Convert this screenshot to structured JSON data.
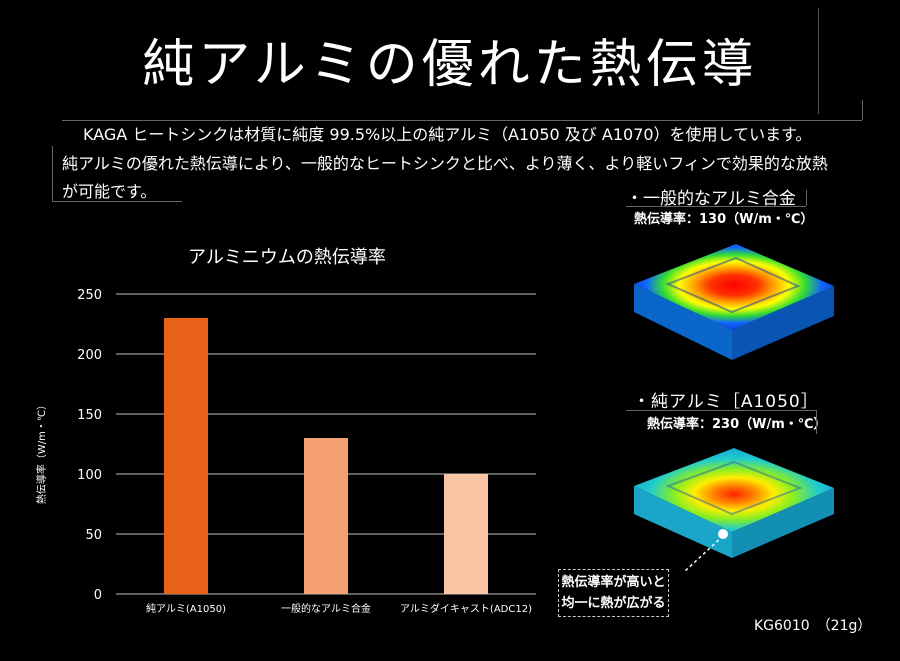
{
  "title": "純アルミの優れた熱伝導",
  "intro": {
    "line1": "KAGA ヒートシンクは材質に純度 99.5%以上の純アルミ（A1050 及び A1070）を使用しています。",
    "line2": "純アルミの優れた熱伝導により、一般的なヒートシンクと比べ、より薄く、より軽いフィンで効果的な放熱",
    "line3": "が可能です。"
  },
  "chart_data": {
    "type": "bar",
    "title": "アルミニウムの熱伝導率",
    "ylabel": "熱伝導率（W/m・℃）",
    "xlabel": "",
    "categories": [
      "純アルミ(A1050)",
      "一般的なアルミ合金",
      "アルミダイキャスト(ADC12)"
    ],
    "values": [
      230,
      130,
      100
    ],
    "colors": [
      "#e8621a",
      "#f4a070",
      "#f8c4a4"
    ],
    "ylim": [
      0,
      250
    ],
    "yticks": [
      0,
      50,
      100,
      150,
      200,
      250
    ],
    "grid": true,
    "legend": "none"
  },
  "images": {
    "alloy": {
      "name": "・一般的なアルミ合金",
      "conductivity": "熱伝導率：130（W/m・℃）"
    },
    "pure": {
      "name": "・純アルミ［A1050］",
      "conductivity": "熱伝導率：230（W/m・℃）"
    }
  },
  "callout": {
    "line1": "熱伝導率が高いと",
    "line2": "均一に熱が広がる"
  },
  "model": "KG6010　（21g）"
}
